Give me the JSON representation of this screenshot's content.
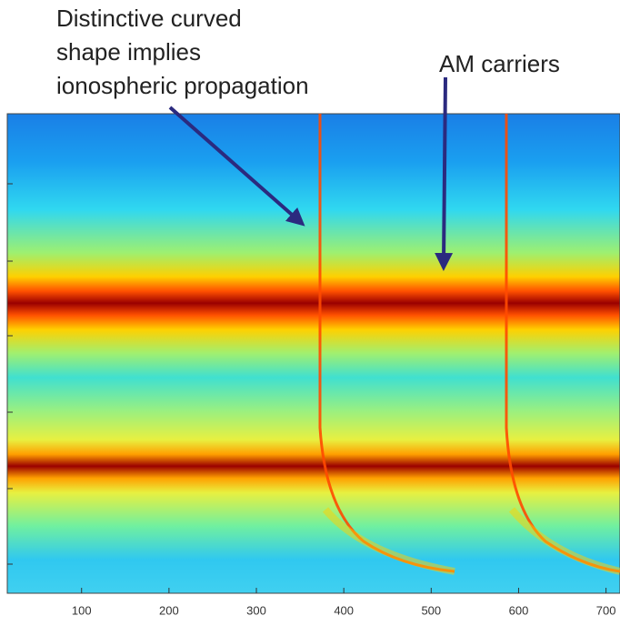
{
  "chart_data": {
    "type": "spectrogram",
    "annotations": [
      {
        "lines": [
          "Distinctive curved",
          "shape implies",
          "ionospheric propagation"
        ]
      },
      {
        "lines": [
          "AM carriers"
        ]
      }
    ],
    "xlim": [
      15,
      716
    ],
    "xticks": [
      100,
      200,
      300,
      400,
      500,
      600,
      700
    ]
  }
}
